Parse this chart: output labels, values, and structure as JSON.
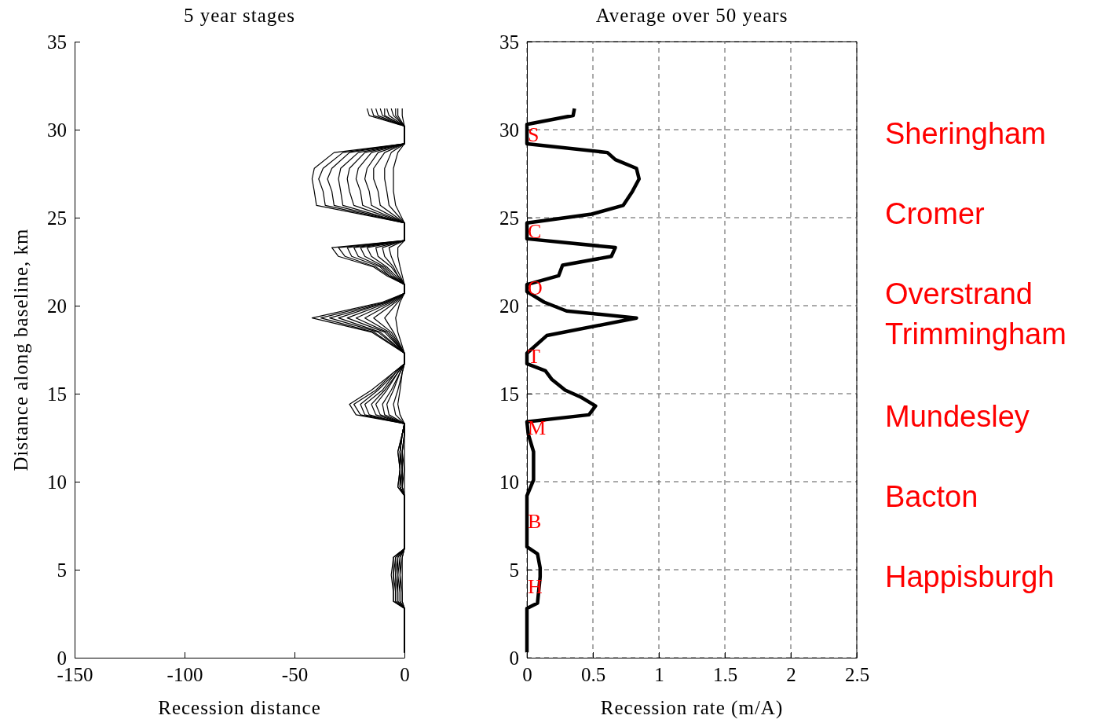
{
  "chart_data": [
    {
      "type": "line",
      "title": "5 year stages",
      "xlabel": "Recession distance",
      "ylabel": "Distance along baseline, km",
      "orientation": "horizontal",
      "grid": false,
      "xlim": [
        -150,
        0
      ],
      "xticks": [
        -150,
        -100,
        -50,
        0
      ],
      "ylim": [
        0,
        35
      ],
      "yticks": [
        0,
        5,
        10,
        15,
        20,
        25,
        30,
        35
      ],
      "x": [
        31.2,
        30.8,
        30.2,
        29.2,
        28.7,
        27.8,
        27.2,
        26.5,
        25.7,
        24.7,
        23.7,
        23.3,
        22.8,
        22.2,
        21.7,
        21.2,
        20.7,
        20.2,
        19.3,
        18.5,
        17.3,
        16.7,
        16.2,
        15.2,
        14.4,
        13.8,
        13.3,
        12.7,
        11.7,
        10.7,
        9.7,
        9.2,
        6.2,
        5.7,
        4.7,
        3.7,
        3.2,
        2.8,
        0.3
      ],
      "series": [
        {
          "color": "#000000",
          "values": [
            -1,
            -1,
            0,
            0,
            -3,
            -5,
            -5,
            -5,
            -4,
            0,
            0,
            -3,
            -3,
            -2,
            -1,
            0,
            0,
            -2,
            -4,
            -3,
            0,
            0,
            -1,
            -2,
            -3,
            -2,
            0,
            0,
            0,
            0,
            0,
            0,
            0,
            -1,
            -1,
            -1,
            -1,
            0,
            0
          ]
        },
        {
          "color": "#000000",
          "values": [
            -3,
            -3,
            0,
            0,
            -6,
            -9,
            -9,
            -8,
            -7,
            0,
            0,
            -7,
            -6,
            -4,
            -2,
            0,
            0,
            -3,
            -9,
            -5,
            0,
            0,
            -1,
            -3,
            -5,
            -4,
            0,
            0,
            -1,
            0,
            -1,
            0,
            0,
            -1,
            -2,
            -1,
            -1,
            0,
            0
          ]
        },
        {
          "color": "#000000",
          "values": [
            -4,
            -4,
            0,
            0,
            -9,
            -14,
            -14,
            -12,
            -11,
            0,
            0,
            -10,
            -9,
            -5,
            -3,
            0,
            0,
            -4,
            -14,
            -6,
            0,
            0,
            -2,
            -5,
            -8,
            -7,
            0,
            0,
            -1,
            -1,
            -1,
            0,
            0,
            -2,
            -2,
            -2,
            -2,
            0,
            0
          ]
        },
        {
          "color": "#000000",
          "values": [
            -6,
            -5,
            0,
            0,
            -12,
            -17,
            -18,
            -16,
            -15,
            0,
            0,
            -13,
            -12,
            -6,
            -3,
            0,
            0,
            -5,
            -18,
            -7,
            0,
            0,
            -2,
            -6,
            -10,
            -9,
            0,
            0,
            -1,
            -1,
            -1,
            0,
            0,
            -2,
            -3,
            -2,
            -2,
            0,
            0
          ]
        },
        {
          "color": "#000000",
          "values": [
            -8,
            -7,
            0,
            0,
            -15,
            -21,
            -22,
            -20,
            -19,
            0,
            0,
            -17,
            -15,
            -8,
            -4,
            0,
            0,
            -6,
            -22,
            -8,
            0,
            0,
            -3,
            -8,
            -13,
            -11,
            0,
            -1,
            -2,
            -1,
            -2,
            0,
            0,
            -3,
            -3,
            -3,
            -3,
            0,
            0
          ]
        },
        {
          "color": "#000000",
          "values": [
            -9,
            -9,
            0,
            0,
            -18,
            -25,
            -26,
            -25,
            -23,
            0,
            0,
            -20,
            -18,
            -9,
            -5,
            0,
            0,
            -7,
            -26,
            -9,
            0,
            0,
            -3,
            -9,
            -15,
            -13,
            0,
            -1,
            -2,
            -1,
            -2,
            0,
            0,
            -3,
            -4,
            -3,
            -3,
            0,
            0
          ]
        },
        {
          "color": "#000000",
          "values": [
            -11,
            -10,
            0,
            0,
            -21,
            -29,
            -30,
            -29,
            -28,
            0,
            0,
            -23,
            -21,
            -10,
            -6,
            0,
            0,
            -8,
            -30,
            -11,
            0,
            0,
            -4,
            -10,
            -18,
            -16,
            0,
            -1,
            -2,
            -2,
            -2,
            0,
            0,
            -4,
            -4,
            -4,
            -4,
            0,
            0
          ]
        },
        {
          "color": "#000000",
          "values": [
            -13,
            -12,
            0,
            0,
            -25,
            -33,
            -35,
            -33,
            -32,
            0,
            0,
            -26,
            -24,
            -11,
            -7,
            0,
            0,
            -8,
            -34,
            -12,
            0,
            0,
            -4,
            -12,
            -20,
            -18,
            0,
            -1,
            -2,
            -2,
            -2,
            0,
            0,
            -4,
            -5,
            -4,
            -4,
            0,
            0
          ]
        },
        {
          "color": "#000000",
          "values": [
            -15,
            -14,
            0,
            0,
            -28,
            -37,
            -39,
            -37,
            -36,
            0,
            0,
            -30,
            -27,
            -13,
            -7,
            0,
            0,
            -9,
            -38,
            -14,
            0,
            0,
            -5,
            -13,
            -23,
            -20,
            0,
            -1,
            -3,
            -2,
            -3,
            0,
            0,
            -5,
            -5,
            -5,
            -5,
            0,
            0
          ]
        },
        {
          "color": "#000000",
          "values": [
            -17,
            -16,
            0,
            0,
            -32,
            -41,
            -42,
            -41,
            -40,
            0,
            0,
            -33,
            -30,
            -14,
            -8,
            0,
            0,
            -10,
            -42,
            -15,
            0,
            0,
            -5,
            -15,
            -25,
            -22,
            0,
            -1,
            -3,
            -2,
            -3,
            0,
            0,
            -5,
            -6,
            -5,
            -5,
            0,
            0
          ]
        }
      ]
    },
    {
      "type": "line",
      "title": "Average over 50 years",
      "xlabel": "Recession rate (m/A)",
      "orientation": "horizontal",
      "grid": true,
      "line_style": "solid",
      "xlim": [
        0,
        2.5
      ],
      "xticks": [
        0,
        0.5,
        1,
        1.5,
        2,
        2.5
      ],
      "ylim": [
        0,
        35
      ],
      "yticks": [
        0,
        5,
        10,
        15,
        20,
        25,
        30,
        35
      ],
      "x": [
        31.2,
        30.8,
        30.3,
        29.2,
        28.7,
        28.3,
        27.8,
        27.2,
        26.5,
        25.7,
        25.2,
        24.7,
        23.8,
        23.3,
        22.8,
        22.3,
        21.7,
        21.2,
        20.8,
        20.2,
        19.7,
        19.3,
        18.3,
        17.3,
        16.7,
        16.3,
        15.8,
        15.2,
        14.8,
        14.3,
        13.8,
        13.4,
        12.7,
        11.7,
        10.1,
        9.2,
        6.3,
        5.9,
        5.1,
        4.6,
        3.1,
        2.8,
        0.3
      ],
      "series": [
        {
          "color": "#000000",
          "values": [
            0.36,
            0.35,
            0,
            0,
            0.61,
            0.67,
            0.83,
            0.85,
            0.8,
            0.73,
            0.49,
            0,
            0,
            0.67,
            0.64,
            0.27,
            0.24,
            0,
            0,
            0.13,
            0.3,
            0.83,
            0.15,
            0,
            0,
            0.14,
            0.19,
            0.29,
            0.41,
            0.52,
            0.47,
            0,
            0.01,
            0.05,
            0.05,
            0,
            0,
            0.08,
            0.1,
            0.1,
            0.08,
            0,
            0
          ]
        }
      ],
      "annotations": [
        "S",
        "C",
        "O",
        "T",
        "M",
        "B",
        "H",
        "Sheringham",
        "Cromer",
        "Overstrand",
        "Trimmingham",
        "Mundesley",
        "Bacton",
        "Happisburgh"
      ]
    }
  ]
}
